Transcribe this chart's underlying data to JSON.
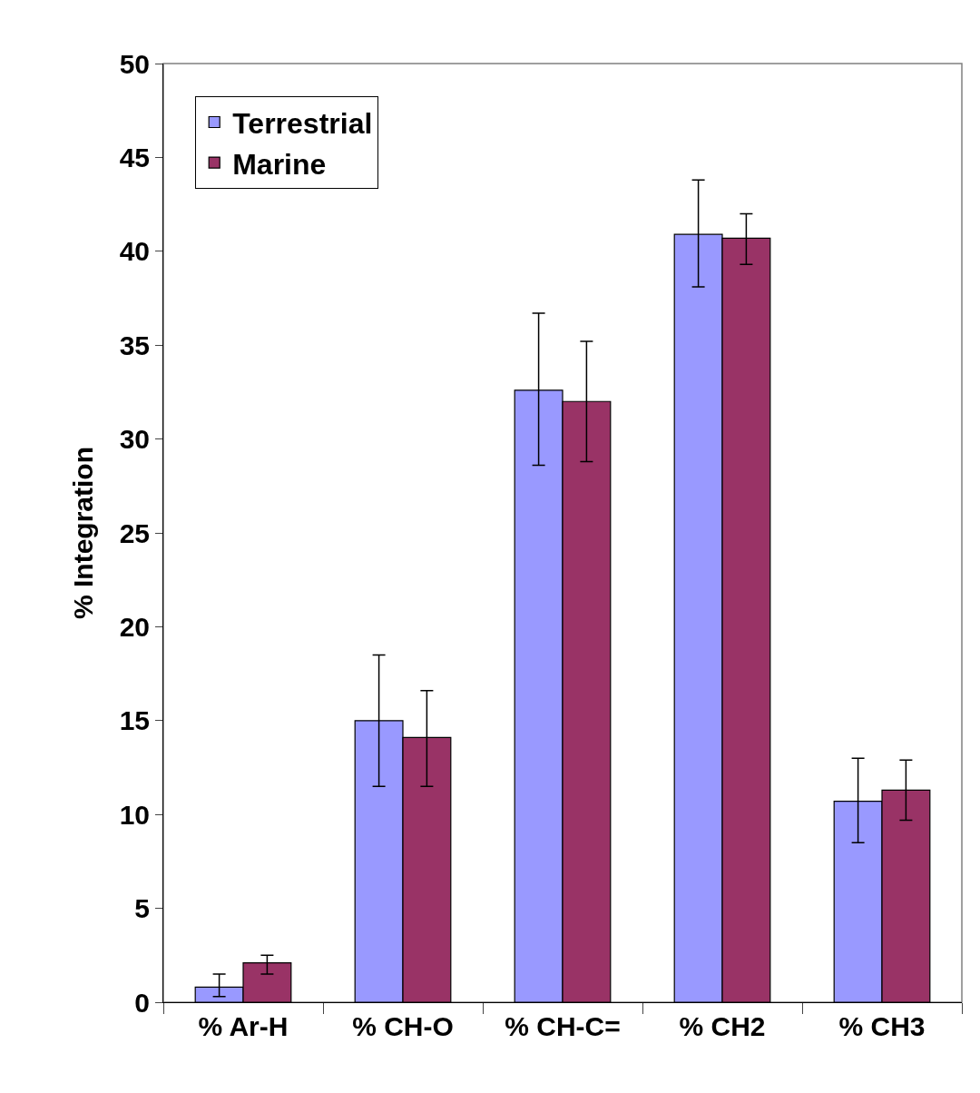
{
  "chart_data": {
    "type": "bar",
    "ylabel": "% Integration",
    "categories": [
      "% Ar-H",
      "% CH-O",
      "% CH-C=",
      "% CH2",
      "% CH3"
    ],
    "series": [
      {
        "name": "Terrestrial",
        "color": "#9999ff",
        "values": [
          0.8,
          15.0,
          32.6,
          40.9,
          10.7
        ],
        "errors": [
          [
            0.3,
            1.5
          ],
          [
            11.5,
            18.5
          ],
          [
            28.6,
            36.7
          ],
          [
            38.1,
            43.8
          ],
          [
            8.5,
            13.0
          ]
        ]
      },
      {
        "name": "Marine",
        "color": "#993366",
        "values": [
          2.1,
          14.1,
          32.0,
          40.7,
          11.3
        ],
        "errors": [
          [
            1.5,
            2.5
          ],
          [
            11.5,
            16.6
          ],
          [
            28.8,
            35.2
          ],
          [
            39.3,
            42.0
          ],
          [
            9.7,
            12.9
          ]
        ]
      }
    ],
    "ylim": [
      0,
      50
    ],
    "yticks": [
      0,
      5,
      10,
      15,
      20,
      25,
      30,
      35,
      40,
      45,
      50
    ],
    "grid": false,
    "legend": "top left"
  }
}
